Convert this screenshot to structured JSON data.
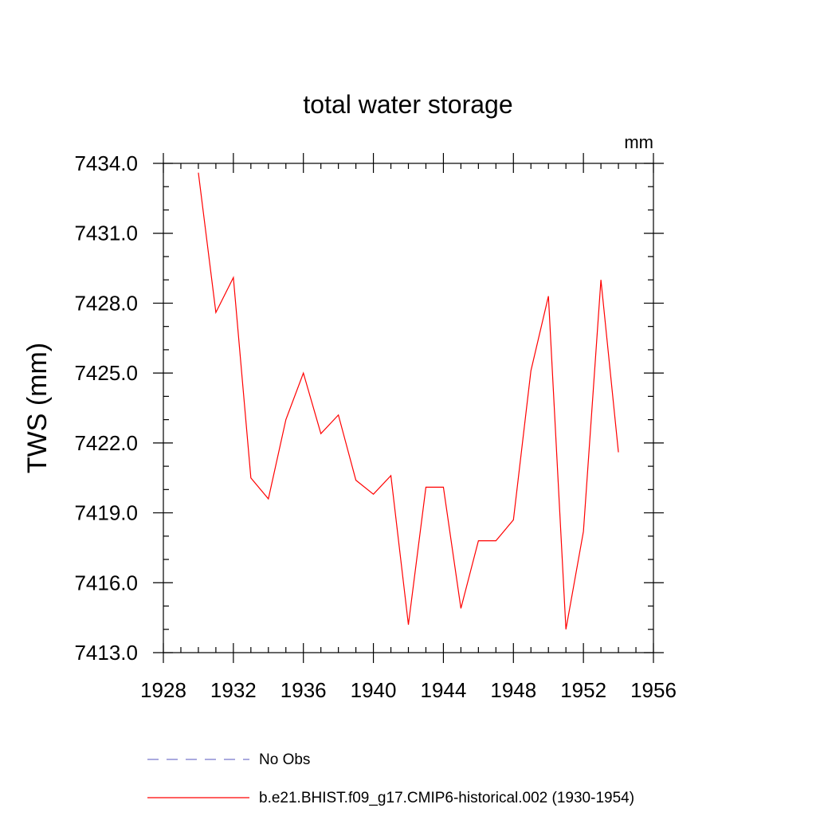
{
  "chart_data": {
    "type": "line",
    "title": "total water storage",
    "units": "mm",
    "ylabel": "TWS  (mm)",
    "xlabel": "",
    "xlim": [
      1928,
      1956
    ],
    "ylim": [
      7413.0,
      7434.0
    ],
    "x_major_ticks": [
      1928,
      1932,
      1936,
      1940,
      1944,
      1948,
      1952,
      1956
    ],
    "x_tick_labels": [
      "1928",
      "1932",
      "1936",
      "1940",
      "1944",
      "1948",
      "1952",
      "1956"
    ],
    "x_minor_step": 1,
    "y_major_ticks": [
      7413.0,
      7416.0,
      7419.0,
      7422.0,
      7425.0,
      7428.0,
      7431.0,
      7434.0
    ],
    "y_tick_labels": [
      "7413.0",
      "7416.0",
      "7419.0",
      "7422.0",
      "7425.0",
      "7428.0",
      "7431.0",
      "7434.0"
    ],
    "y_minor_step": 1.0,
    "grid": false,
    "legend_position": "bottom",
    "legend": [
      {
        "label": "No Obs",
        "color": "#7777cc",
        "style": "dashed"
      },
      {
        "label": "b.e21.BHIST.f09_g17.CMIP6-historical.002 (1930-1954)",
        "color": "#ff0000",
        "style": "solid"
      }
    ],
    "series": [
      {
        "color": "#ff0000",
        "x": [
          1930,
          1931,
          1932,
          1933,
          1934,
          1935,
          1936,
          1937,
          1938,
          1939,
          1940,
          1941,
          1942,
          1943,
          1944,
          1945,
          1946,
          1947,
          1948,
          1949,
          1950,
          1951,
          1952,
          1953,
          1954
        ],
        "values": [
          7433.6,
          7427.6,
          7429.1,
          7420.5,
          7419.6,
          7423.0,
          7425.0,
          7422.4,
          7423.2,
          7420.4,
          7419.8,
          7420.6,
          7414.2,
          7420.1,
          7420.1,
          7414.9,
          7417.8,
          7417.8,
          7418.7,
          7425.1,
          7428.3,
          7414.0,
          7418.2,
          7429.0,
          7421.6
        ]
      }
    ]
  }
}
